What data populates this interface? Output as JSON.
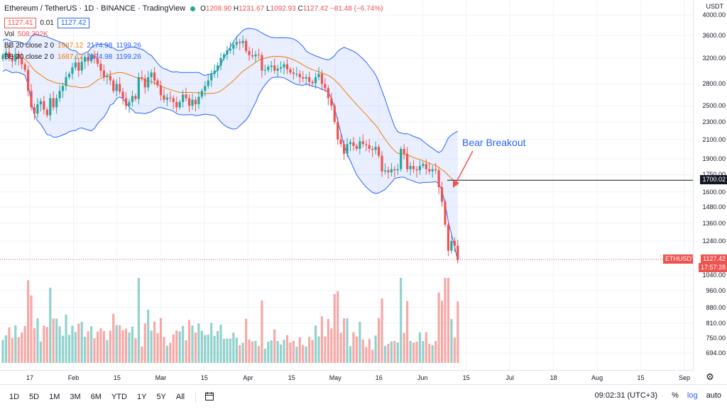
{
  "header": {
    "title": "Ethereum / TetherUS · 1D · BINANCE · TradingView",
    "ohlc": {
      "o_label": "O",
      "o": "1208.90",
      "h_label": "H",
      "h": "1231.67",
      "l_label": "L",
      "l": "1092.93",
      "c_label": "C",
      "c": "1127.42",
      "change": "−81.48 (−6.74%)"
    },
    "bid": "1127.41",
    "spread": "0.01",
    "ask": "1127.42",
    "vol_label": "Vol",
    "vol_value": "508.302K",
    "bb1": {
      "label": "BB 20 close 2 0",
      "basis": "1687.12",
      "upper": "2174.98",
      "lower": "1199.26"
    },
    "bb2": {
      "label": "BB 20 close 2 0",
      "basis": "1687.12",
      "upper": "2174.98",
      "lower": "1199.26"
    }
  },
  "annotation": {
    "text": "Bear Breakout"
  },
  "price_axis": {
    "currency": "USDT",
    "ticks": [
      "4000.00",
      "3600.00",
      "3200.00",
      "2800.00",
      "2500.00",
      "2300.00",
      "2100.00",
      "1900.00",
      "1750.00",
      "1600.00",
      "1480.00",
      "1360.00",
      "1240.00",
      "1040.00",
      "960.00",
      "880.00",
      "810.00",
      "750.00",
      "694.00"
    ],
    "hline_label": "1700.02",
    "symbol_tag": "ETHUSDT",
    "last_price": "1127.42",
    "countdown": "17:57:28"
  },
  "time_axis": {
    "ticks": [
      "17",
      "Feb",
      "15",
      "Mar",
      "15",
      "Apr",
      "15",
      "May",
      "16",
      "Jun",
      "15",
      "Jul",
      "18",
      "Aug",
      "15",
      "Sep"
    ]
  },
  "toolbar": {
    "timeframes": [
      "1D",
      "5D",
      "1M",
      "3M",
      "6M",
      "YTD",
      "1Y",
      "5Y",
      "All"
    ],
    "clock": "09:02:31 (UTC+3)",
    "options": [
      "%",
      "log",
      "auto"
    ]
  },
  "colors": {
    "up": "#26a69a",
    "down": "#ef5350",
    "band": "#2962ff",
    "basis": "#f57c00"
  },
  "icons": [
    "calendar-range-icon",
    "settings-gear-icon",
    "live-dot-icon"
  ],
  "chart_data": {
    "type": "candlestick",
    "symbol": "ETHUSDT",
    "interval": "1D",
    "ylim": [
      650,
      4200
    ],
    "key_level": 1700.02,
    "closes": [
      3250,
      3300,
      3200,
      3150,
      3270,
      3200,
      3100,
      3010,
      2700,
      2480,
      2400,
      2520,
      2560,
      2450,
      2380,
      2600,
      2480,
      2600,
      2700,
      2770,
      2900,
      2950,
      3050,
      3130,
      3000,
      3140,
      3220,
      3150,
      3250,
      3200,
      3110,
      3000,
      2900,
      2920,
      2850,
      2700,
      2800,
      2690,
      2600,
      2500,
      2550,
      2630,
      2590,
      2900,
      2880,
      2750,
      2900,
      2970,
      2850,
      2780,
      2640,
      2580,
      2610,
      2600,
      2550,
      2480,
      2550,
      2650,
      2600,
      2500,
      2580,
      2520,
      2620,
      2700,
      2770,
      2850,
      2950,
      3000,
      3080,
      3200,
      3260,
      3330,
      3360,
      3430,
      3480,
      3460,
      3500,
      3320,
      3250,
      3230,
      3260,
      3250,
      3000,
      3010,
      3060,
      3080,
      3000,
      3030,
      3050,
      3100,
      3020,
      2970,
      2950,
      2950,
      2900,
      2880,
      2900,
      2830,
      2810,
      2900,
      2950,
      2800,
      2740,
      2600,
      2500,
      2300,
      2100,
      2050,
      1950,
      2050,
      2070,
      2030,
      2000,
      2080,
      2050,
      2040,
      2000,
      1990,
      2020,
      1930,
      1780,
      1790,
      1770,
      1800,
      1790,
      1800,
      2000,
      1950,
      1800,
      1830,
      1800,
      1790,
      1830,
      1850,
      1800,
      1780,
      1800,
      1790,
      1640,
      1520,
      1350,
      1180,
      1240,
      1210,
      1127
    ]
  }
}
